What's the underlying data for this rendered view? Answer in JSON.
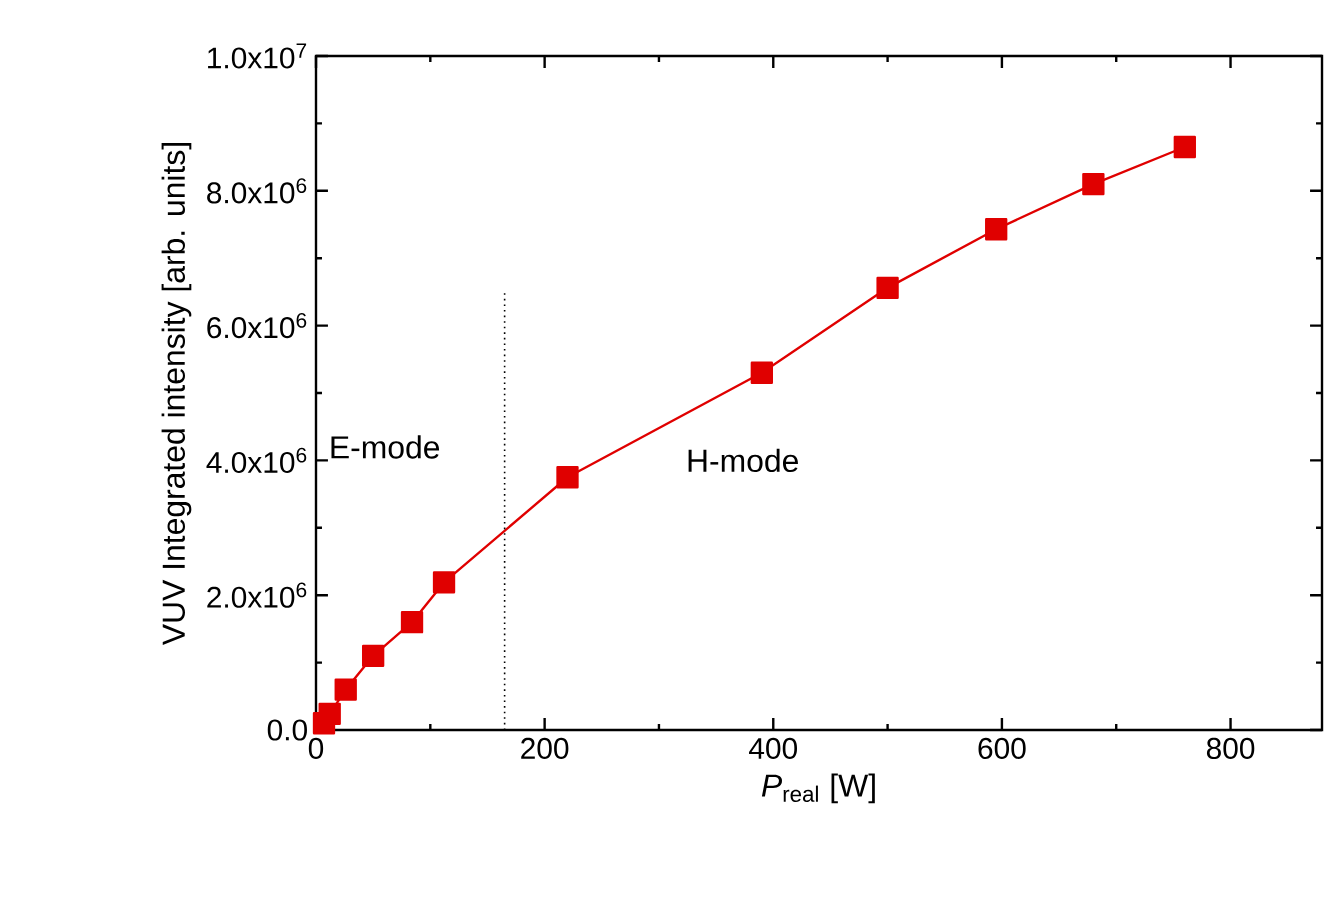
{
  "chart_data": {
    "type": "line",
    "xlabel": "*P*$_{real}$ [W]",
    "ylabel": "VUV Integrated intensity [arb. units]",
    "x": [
      7,
      12,
      26,
      50,
      84,
      112,
      220,
      390,
      500,
      595,
      680,
      760
    ],
    "series": [
      {
        "color": "#e00000",
        "values": [
          100000,
          240000,
          600000,
          1100000,
          1600000,
          2190000,
          3750000,
          5300000,
          6560000,
          7430000,
          8100000,
          8650000
        ]
      }
    ],
    "marker": "square",
    "line_style": "solid",
    "grid": false,
    "xlim": [
      0,
      880
    ],
    "xticks": [
      0,
      200,
      400,
      600,
      800
    ],
    "ylim": [
      0,
      10000000
    ],
    "yticks": [
      {
        "value": 0,
        "label": "0.0"
      },
      {
        "value": 2000000,
        "label": "2.0x10$^{6}$"
      },
      {
        "value": 4000000,
        "label": "4.0x10$^{6}$"
      },
      {
        "value": 6000000,
        "label": "6.0x10$^{6}$"
      },
      {
        "value": 8000000,
        "label": "8.0x10$^{6}$"
      },
      {
        "value": 10000000,
        "label": "1.0x10$^{7}$"
      }
    ],
    "ref_lines": [
      {
        "axis": "x",
        "value": 165,
        "line_style": "dotted"
      }
    ],
    "annotations": [
      "E-mode",
      "H-mode"
    ]
  }
}
